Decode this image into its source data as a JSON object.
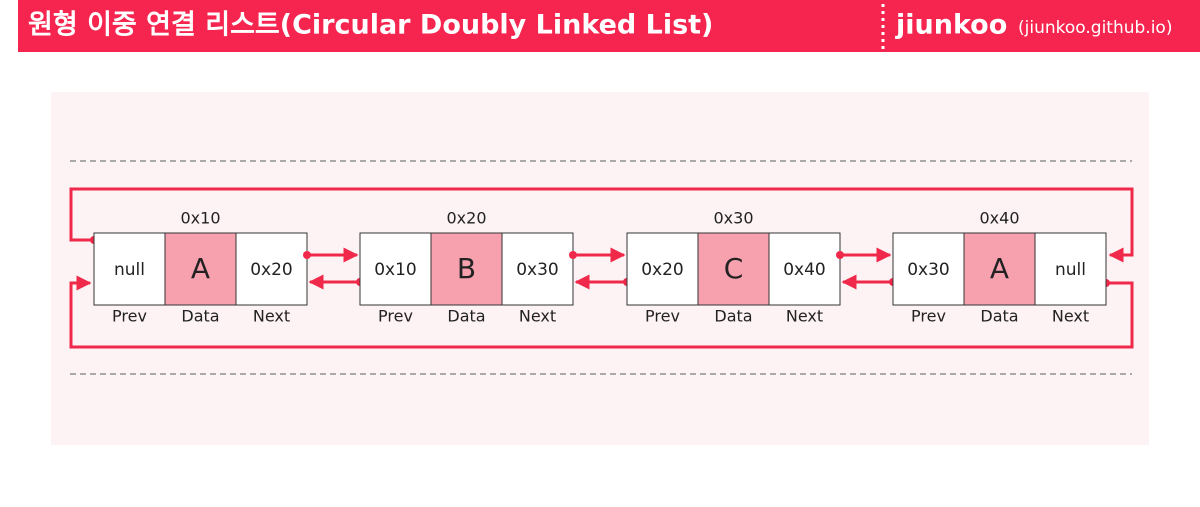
{
  "header": {
    "title": "원형 이중 연결 리스트(Circular Doubly Linked List)",
    "author": "jiunkoo",
    "site": "(jiunkoo.github.io)"
  },
  "field_labels": [
    "Prev",
    "Data",
    "Next"
  ],
  "nodes": [
    {
      "address": "0x10",
      "prev": "null",
      "data": "A",
      "next": "0x20"
    },
    {
      "address": "0x20",
      "prev": "0x10",
      "data": "B",
      "next": "0x30"
    },
    {
      "address": "0x30",
      "prev": "0x20",
      "data": "C",
      "next": "0x40"
    },
    {
      "address": "0x40",
      "prev": "0x30",
      "data": "A",
      "next": "null"
    }
  ]
}
